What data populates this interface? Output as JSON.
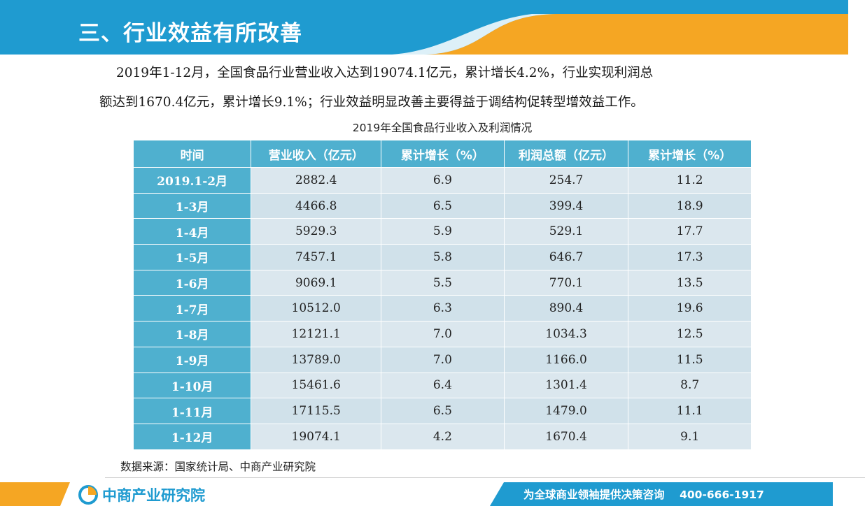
{
  "header": {
    "title": "三、行业效益有所改善"
  },
  "intro": {
    "line1": "2019年1-12月，全国食品行业营业收入达到19074.1亿元，累计增长4.2%，行业实现利润总",
    "line2": "额达到1670.4亿元，累计增长9.1%；行业效益明显改善主要得益于调结构促转型增效益工作。"
  },
  "table": {
    "title": "2019年全国食品行业收入及利润情况",
    "headers": [
      "时间",
      "营业收入（亿元）",
      "累计增长（%）",
      "利润总额（亿元）",
      "累计增长（%）"
    ],
    "rows": [
      [
        "2019.1-2月",
        "2882.4",
        "6.9",
        "254.7",
        "11.2"
      ],
      [
        "1-3月",
        "4466.8",
        "6.5",
        "399.4",
        "18.9"
      ],
      [
        "1-4月",
        "5929.3",
        "5.9",
        "529.1",
        "17.7"
      ],
      [
        "1-5月",
        "7457.1",
        "5.8",
        "646.7",
        "17.3"
      ],
      [
        "1-6月",
        "9069.1",
        "5.5",
        "770.1",
        "13.5"
      ],
      [
        "1-7月",
        "10512.0",
        "6.3",
        "890.4",
        "19.6"
      ],
      [
        "1-8月",
        "12121.1",
        "7.0",
        "1034.3",
        "12.5"
      ],
      [
        "1-9月",
        "13789.0",
        "7.0",
        "1166.0",
        "11.5"
      ],
      [
        "1-10月",
        "15461.6",
        "6.4",
        "1301.4",
        "8.7"
      ],
      [
        "1-11月",
        "17115.5",
        "6.5",
        "1479.0",
        "11.1"
      ],
      [
        "1-12月",
        "19074.1",
        "4.2",
        "1670.4",
        "9.1"
      ]
    ]
  },
  "source": "数据来源：国家统计局、中商产业研究院",
  "footer": {
    "logo_text": "中商产业研究院",
    "slogan": "为全球商业领袖提供决策咨询",
    "phone": "400-666-1917"
  },
  "colors": {
    "brand_blue": "#1f9bd0",
    "accent_orange": "#f5a623",
    "table_header": "#4fb0cf",
    "cell_bg": "#dbe7ee"
  }
}
